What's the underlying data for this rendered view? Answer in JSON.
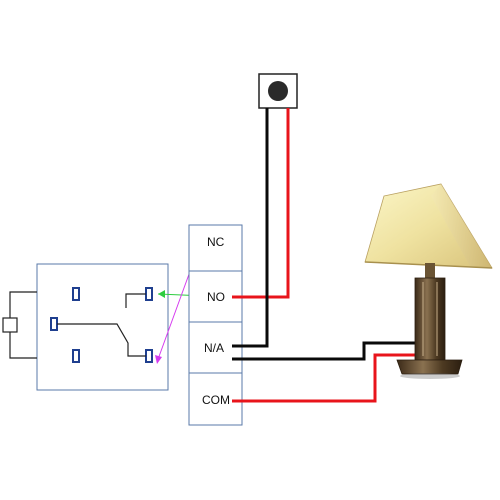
{
  "terminals": {
    "nc": "NC",
    "no": "NO",
    "na": "N/A",
    "com": "COM"
  },
  "components": {
    "switch": "push-button-switch",
    "lamp": "table-lamp",
    "relay": "relay-module",
    "terminal_block": "terminal-block"
  },
  "wires": {
    "live": "#e8141b",
    "neutral": "#0a0a0a",
    "relay_line_a": "#2ecc40",
    "relay_line_b": "#d63cf0",
    "relay_frame": "#5a7aa8",
    "contact": "#1f3f8f"
  }
}
